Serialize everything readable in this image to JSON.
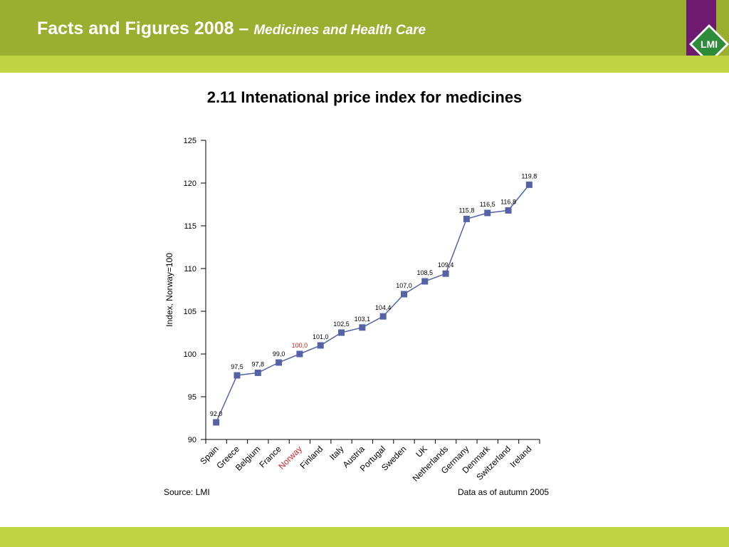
{
  "header": {
    "title": "Facts and Figures 2008 –",
    "subtitle": "Medicines and Health Care",
    "logo_text": "LMI"
  },
  "colors": {
    "header_green": "#9aae2f",
    "stripe_green": "#bfd442",
    "logo_purple": "#6e1a6e",
    "series": "#5563a6",
    "highlight": "#cc2222"
  },
  "footer": {
    "source": "Source: LMI",
    "data_note": "Data as of autumn 2005"
  },
  "chart_data": {
    "type": "line",
    "title": "2.11 Intenational price index for medicines",
    "ylabel": "Index, Norway=100",
    "xlabel": "",
    "ylim": [
      90,
      125
    ],
    "yticks": [
      90,
      95,
      100,
      105,
      110,
      115,
      120,
      125
    ],
    "grid": false,
    "marker": "square",
    "categories": [
      "Spain",
      "Greece",
      "Belgium",
      "France",
      "Norway",
      "Finland",
      "Italy",
      "Austria",
      "Portugal",
      "Sweden",
      "UK",
      "Netherlands",
      "Germany",
      "Denmark",
      "Switzerland",
      "Ireland"
    ],
    "values": [
      92.0,
      97.5,
      97.8,
      99.0,
      100.0,
      101.0,
      102.5,
      103.1,
      104.4,
      107.0,
      108.5,
      109.4,
      115.8,
      116.5,
      116.8,
      119.8
    ],
    "labels": [
      "92,0",
      "97,5",
      "97,8",
      "99,0",
      "100,0",
      "101,0",
      "102,5",
      "103,1",
      "104,4",
      "107,0",
      "108,5",
      "109,4",
      "115,8",
      "116,5",
      "116,8",
      "119,8"
    ],
    "highlight_category": "Norway"
  }
}
